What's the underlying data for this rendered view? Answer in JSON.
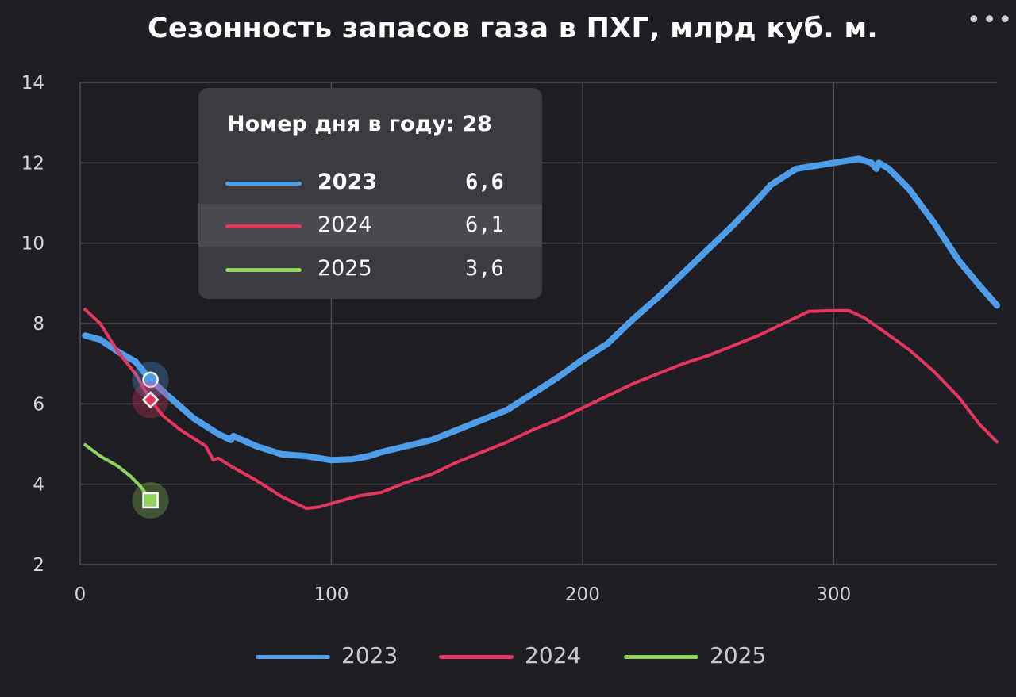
{
  "menu_icon": "more-dots-icon",
  "menu_glyph": "•••",
  "chart_data": {
    "type": "line",
    "title": "Сезонность запасов газа в ПХГ, млрд куб. м.",
    "xlabel": "",
    "ylabel": "",
    "xlim": [
      0,
      365
    ],
    "ylim": [
      2,
      14
    ],
    "x_ticks": [
      0,
      100,
      200,
      300
    ],
    "y_ticks": [
      2,
      4,
      6,
      8,
      10,
      12,
      14
    ],
    "grid": true,
    "legend": "bottom-center",
    "series": [
      {
        "name": "2023",
        "color": "#4e9de8",
        "points": [
          [
            2,
            7.7
          ],
          [
            8,
            7.6
          ],
          [
            15,
            7.3
          ],
          [
            22,
            7.05
          ],
          [
            28,
            6.6
          ],
          [
            35,
            6.2
          ],
          [
            45,
            5.65
          ],
          [
            55,
            5.25
          ],
          [
            60,
            5.1
          ],
          [
            61,
            5.2
          ],
          [
            70,
            4.95
          ],
          [
            80,
            4.75
          ],
          [
            90,
            4.7
          ],
          [
            100,
            4.6
          ],
          [
            108,
            4.62
          ],
          [
            115,
            4.7
          ],
          [
            120,
            4.8
          ],
          [
            130,
            4.95
          ],
          [
            140,
            5.1
          ],
          [
            150,
            5.35
          ],
          [
            160,
            5.6
          ],
          [
            170,
            5.85
          ],
          [
            180,
            6.25
          ],
          [
            190,
            6.65
          ],
          [
            200,
            7.1
          ],
          [
            210,
            7.5
          ],
          [
            220,
            8.1
          ],
          [
            230,
            8.65
          ],
          [
            240,
            9.25
          ],
          [
            250,
            9.85
          ],
          [
            260,
            10.45
          ],
          [
            270,
            11.1
          ],
          [
            275,
            11.45
          ],
          [
            285,
            11.85
          ],
          [
            295,
            11.95
          ],
          [
            305,
            12.05
          ],
          [
            310,
            12.1
          ],
          [
            315,
            12.0
          ],
          [
            317,
            11.85
          ],
          [
            318,
            12.0
          ],
          [
            322,
            11.85
          ],
          [
            330,
            11.35
          ],
          [
            340,
            10.5
          ],
          [
            350,
            9.55
          ],
          [
            358,
            8.95
          ],
          [
            365,
            8.45
          ]
        ]
      },
      {
        "name": "2024",
        "color": "#e6365d",
        "points": [
          [
            2,
            8.35
          ],
          [
            8,
            8.0
          ],
          [
            15,
            7.3
          ],
          [
            22,
            6.75
          ],
          [
            28,
            6.1
          ],
          [
            33,
            5.7
          ],
          [
            40,
            5.35
          ],
          [
            50,
            4.95
          ],
          [
            53,
            4.6
          ],
          [
            55,
            4.65
          ],
          [
            60,
            4.45
          ],
          [
            70,
            4.1
          ],
          [
            80,
            3.7
          ],
          [
            90,
            3.4
          ],
          [
            95,
            3.43
          ],
          [
            100,
            3.52
          ],
          [
            110,
            3.7
          ],
          [
            120,
            3.8
          ],
          [
            130,
            4.05
          ],
          [
            140,
            4.25
          ],
          [
            150,
            4.55
          ],
          [
            160,
            4.8
          ],
          [
            170,
            5.05
          ],
          [
            180,
            5.35
          ],
          [
            190,
            5.6
          ],
          [
            200,
            5.9
          ],
          [
            210,
            6.2
          ],
          [
            220,
            6.5
          ],
          [
            230,
            6.75
          ],
          [
            240,
            7.0
          ],
          [
            250,
            7.2
          ],
          [
            260,
            7.45
          ],
          [
            270,
            7.7
          ],
          [
            280,
            8.0
          ],
          [
            290,
            8.3
          ],
          [
            300,
            8.32
          ],
          [
            306,
            8.32
          ],
          [
            312,
            8.15
          ],
          [
            320,
            7.8
          ],
          [
            330,
            7.35
          ],
          [
            340,
            6.8
          ],
          [
            350,
            6.15
          ],
          [
            358,
            5.5
          ],
          [
            365,
            5.05
          ]
        ]
      },
      {
        "name": "2025",
        "color": "#8fd35a",
        "points": [
          [
            2,
            4.98
          ],
          [
            8,
            4.7
          ],
          [
            15,
            4.45
          ],
          [
            20,
            4.2
          ],
          [
            24,
            3.95
          ],
          [
            28,
            3.6
          ]
        ]
      }
    ],
    "markers": [
      {
        "series": "2023",
        "x": 28,
        "y": 6.6,
        "shape": "circle"
      },
      {
        "series": "2024",
        "x": 28,
        "y": 6.1,
        "shape": "diamond"
      },
      {
        "series": "2025",
        "x": 28,
        "y": 3.6,
        "shape": "square"
      }
    ]
  },
  "tooltip": {
    "header": "Номер дня в году: 28",
    "rows": [
      {
        "name": "2023",
        "value": "6,6",
        "color": "#4e9de8"
      },
      {
        "name": "2024",
        "value": "6,1",
        "color": "#e6365d"
      },
      {
        "name": "2025",
        "value": "3,6",
        "color": "#8fd35a"
      }
    ]
  },
  "legend": [
    {
      "name": "2023",
      "color": "#4e9de8"
    },
    {
      "name": "2024",
      "color": "#e6365d"
    },
    {
      "name": "2025",
      "color": "#8fd35a"
    }
  ]
}
